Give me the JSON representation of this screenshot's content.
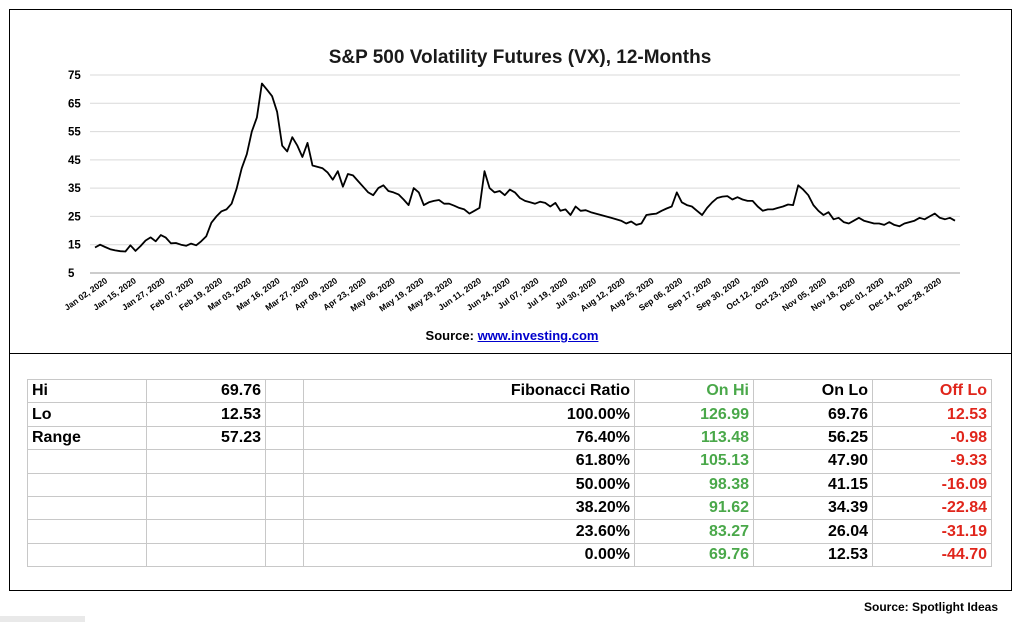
{
  "chart_data": {
    "type": "line",
    "title": "S&P 500 Volatility Futures (VX), 12-Months",
    "xlabel": "",
    "ylabel": "",
    "ylim": [
      5,
      75
    ],
    "y_ticks": [
      5,
      15,
      25,
      35,
      45,
      55,
      65,
      75
    ],
    "x_ticks": [
      "Jan 02, 2020",
      "Jan 15, 2020",
      "Jan 27, 2020",
      "Feb 07, 2020",
      "Feb 19, 2020",
      "Mar 03, 2020",
      "Mar 16, 2020",
      "Mar 27, 2020",
      "Apr 09, 2020",
      "Apr 23, 2020",
      "May 06, 2020",
      "May 19, 2020",
      "May 29, 2020",
      "Jun 11, 2020",
      "Jun 24, 2020",
      "Jul 07, 2020",
      "Jul 19, 2020",
      "Jul 30, 2020",
      "Aug 12, 2020",
      "Aug 25, 2020",
      "Sep 06, 2020",
      "Sep 17, 2020",
      "Sep 30, 2020",
      "Oct 12, 2020",
      "Oct 23, 2020",
      "Nov 05, 2020",
      "Nov 18, 2020",
      "Dec 01, 2020",
      "Dec 14, 2020",
      "Dec 28, 2020"
    ],
    "grid": true,
    "series": [
      {
        "color": "#000000",
        "values": [
          14.0,
          15.0,
          14.2,
          13.4,
          13.0,
          12.7,
          12.6,
          14.8,
          12.8,
          14.5,
          16.5,
          17.6,
          16.2,
          18.4,
          17.5,
          15.5,
          15.6,
          15.0,
          14.6,
          15.4,
          14.8,
          16.2,
          18.0,
          22.8,
          25.0,
          26.8,
          27.5,
          29.5,
          34.8,
          42.0,
          47.0,
          55.0,
          60.0,
          72.0,
          69.8,
          67.5,
          62.0,
          50.0,
          48.0,
          53.0,
          50.0,
          46.0,
          51.0,
          43.0,
          42.5,
          42.0,
          40.5,
          38.0,
          41.0,
          35.5,
          40.0,
          39.5,
          37.5,
          35.5,
          33.5,
          32.5,
          35.0,
          36.0,
          34.0,
          33.5,
          32.8,
          31.0,
          29.0,
          35.0,
          33.5,
          29.0,
          30.0,
          30.5,
          30.8,
          29.5,
          29.5,
          28.8,
          28.0,
          27.5,
          26.0,
          27.0,
          28.0,
          41.0,
          35.0,
          33.5,
          34.0,
          32.5,
          34.5,
          33.5,
          31.5,
          30.5,
          30.0,
          29.5,
          30.2,
          29.8,
          28.5,
          29.8,
          27.0,
          27.5,
          25.5,
          28.5,
          27.0,
          27.2,
          26.5,
          26.0,
          25.5,
          25.0,
          24.5,
          24.0,
          23.5,
          22.5,
          23.2,
          22.0,
          22.5,
          25.5,
          25.8,
          26.0,
          27.0,
          27.8,
          28.5,
          33.5,
          30.0,
          29.0,
          28.5,
          27.0,
          25.5,
          28.0,
          30.0,
          31.5,
          32.0,
          32.2,
          31.0,
          31.8,
          31.0,
          30.5,
          30.5,
          28.5,
          27.0,
          27.5,
          27.5,
          28.0,
          28.5,
          29.2,
          29.0,
          36.0,
          34.5,
          32.5,
          29.0,
          27.0,
          25.5,
          26.5,
          24.0,
          24.5,
          23.0,
          22.5,
          23.5,
          24.5,
          23.5,
          23.0,
          22.5,
          22.5,
          22.0,
          23.0,
          22.0,
          21.5,
          22.5,
          23.0,
          23.5,
          24.5,
          24.0,
          25.0,
          26.0,
          24.5,
          24.0,
          24.5,
          23.5
        ]
      }
    ],
    "source": {
      "prefix": "Source:",
      "link": "www.investing.com"
    }
  },
  "table": {
    "rows": [
      [
        "Hi",
        "69.76",
        "",
        "Fibonacci  Ratio",
        "On Hi",
        "On Lo",
        "Off Lo"
      ],
      [
        "Lo",
        "12.53",
        "",
        "100.00%",
        "126.99",
        "69.76",
        "12.53"
      ],
      [
        "Range",
        "57.23",
        "",
        "76.40%",
        "113.48",
        "56.25",
        "-0.98"
      ],
      [
        "",
        "",
        "",
        "61.80%",
        "105.13",
        "47.90",
        "-9.33"
      ],
      [
        "",
        "",
        "",
        "50.00%",
        "98.38",
        "41.15",
        "-16.09"
      ],
      [
        "",
        "",
        "",
        "38.20%",
        "91.62",
        "34.39",
        "-22.84"
      ],
      [
        "",
        "",
        "",
        "23.60%",
        "83.27",
        "26.04",
        "-31.19"
      ],
      [
        "",
        "",
        "",
        "0.00%",
        "69.76",
        "12.53",
        "-44.70"
      ]
    ]
  },
  "footer": {
    "source": "Source: Spotlight Ideas"
  },
  "colors": {
    "green": "#4aa84a",
    "red": "#e0251b",
    "line": "#000000"
  }
}
